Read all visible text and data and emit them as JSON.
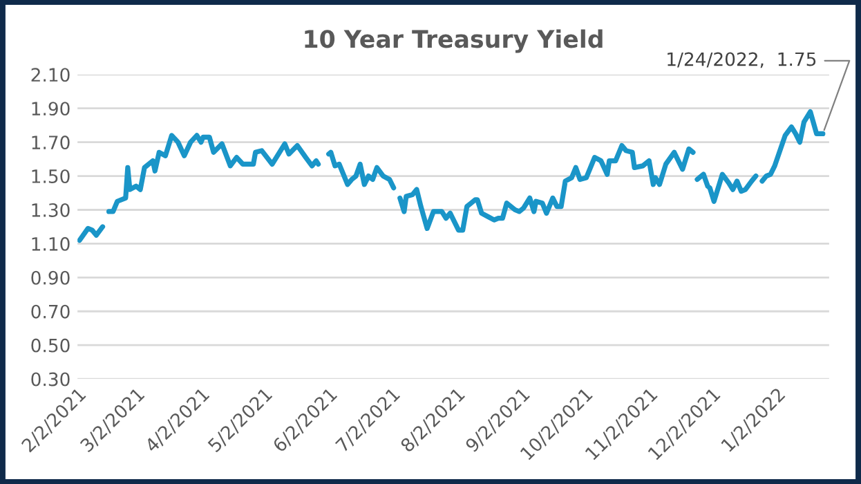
{
  "chart_data": {
    "type": "line",
    "title": "10 Year Treasury Yield",
    "x": [
      "2021-02-03",
      "2021-02-07",
      "2021-02-09",
      "2021-02-11",
      "2021-02-14",
      "2021-02-16",
      "2021-02-17",
      "2021-02-19",
      "2021-02-21",
      "2021-02-25",
      "2021-02-26",
      "2021-02-27",
      "2021-03-02",
      "2021-03-04",
      "2021-03-06",
      "2021-03-10",
      "2021-03-11",
      "2021-03-13",
      "2021-03-16",
      "2021-03-19",
      "2021-03-22",
      "2021-03-25",
      "2021-03-28",
      "2021-03-31",
      "2021-04-02",
      "2021-04-03",
      "2021-04-06",
      "2021-04-08",
      "2021-04-12",
      "2021-04-16",
      "2021-04-19",
      "2021-04-22",
      "2021-04-27",
      "2021-04-28",
      "2021-05-01",
      "2021-05-06",
      "2021-05-12",
      "2021-05-14",
      "2021-05-18",
      "2021-05-22",
      "2021-05-25",
      "2021-05-27",
      "2021-05-28",
      "2021-05-31",
      "2021-06-02",
      "2021-06-03",
      "2021-06-05",
      "2021-06-07",
      "2021-06-11",
      "2021-06-13",
      "2021-06-15",
      "2021-06-17",
      "2021-06-19",
      "2021-06-21",
      "2021-06-23",
      "2021-06-25",
      "2021-06-28",
      "2021-07-01",
      "2021-07-03",
      "2021-07-05",
      "2021-07-06",
      "2021-07-08",
      "2021-07-09",
      "2021-07-12",
      "2021-07-14",
      "2021-07-16",
      "2021-07-19",
      "2021-07-22",
      "2021-07-26",
      "2021-07-28",
      "2021-07-30",
      "2021-08-03",
      "2021-08-05",
      "2021-08-07",
      "2021-08-09",
      "2021-08-11",
      "2021-08-12",
      "2021-08-14",
      "2021-08-17",
      "2021-08-20",
      "2021-08-22",
      "2021-08-24",
      "2021-08-26",
      "2021-08-30",
      "2021-09-01",
      "2021-09-03",
      "2021-09-06",
      "2021-09-08",
      "2021-09-09",
      "2021-09-12",
      "2021-09-14",
      "2021-09-17",
      "2021-09-19",
      "2021-09-21",
      "2021-09-23",
      "2021-09-26",
      "2021-09-28",
      "2021-09-30",
      "2021-10-03",
      "2021-10-05",
      "2021-10-07",
      "2021-10-10",
      "2021-10-13",
      "2021-10-14",
      "2021-10-17",
      "2021-10-20",
      "2021-10-22",
      "2021-10-25",
      "2021-10-26",
      "2021-10-30",
      "2021-11-02",
      "2021-11-04",
      "2021-11-05",
      "2021-11-07",
      "2021-11-10",
      "2021-11-14",
      "2021-11-18",
      "2021-11-21",
      "2021-11-23",
      "2021-11-24",
      "2021-11-25",
      "2021-11-28",
      "2021-11-30",
      "2021-12-01",
      "2021-12-03",
      "2021-12-07",
      "2021-12-10",
      "2021-12-12",
      "2021-12-14",
      "2021-12-16",
      "2021-12-18",
      "2021-12-21",
      "2021-12-23",
      "2021-12-24",
      "2021-12-26",
      "2021-12-28",
      "2021-12-30",
      "2022-01-01",
      "2022-01-06",
      "2022-01-09",
      "2022-01-11",
      "2022-01-13",
      "2022-01-15",
      "2022-01-18",
      "2022-01-21",
      "2022-01-24"
    ],
    "series": [
      {
        "color": "#1a95c8",
        "values": [
          1.12,
          1.19,
          1.18,
          1.15,
          1.2,
          null,
          1.29,
          1.29,
          1.35,
          1.37,
          1.55,
          1.42,
          1.44,
          1.42,
          1.55,
          1.59,
          1.53,
          1.64,
          1.62,
          1.74,
          1.7,
          1.62,
          1.7,
          1.74,
          1.7,
          1.73,
          1.73,
          1.64,
          1.69,
          1.56,
          1.61,
          1.57,
          1.57,
          1.64,
          1.65,
          1.57,
          1.69,
          1.63,
          1.68,
          1.61,
          1.56,
          1.59,
          1.57,
          null,
          1.63,
          1.64,
          1.56,
          1.57,
          1.45,
          1.48,
          1.5,
          1.57,
          1.45,
          1.5,
          1.48,
          1.55,
          1.5,
          1.48,
          1.43,
          null,
          1.37,
          1.29,
          1.38,
          1.39,
          1.42,
          1.32,
          1.19,
          1.29,
          1.29,
          1.25,
          1.28,
          1.18,
          1.18,
          1.32,
          1.34,
          1.36,
          1.36,
          1.28,
          1.26,
          1.24,
          1.25,
          1.25,
          1.34,
          1.3,
          1.29,
          1.31,
          1.37,
          1.29,
          1.35,
          1.34,
          1.28,
          1.37,
          1.32,
          1.32,
          1.47,
          1.49,
          1.55,
          1.48,
          1.49,
          1.55,
          1.61,
          1.59,
          1.51,
          1.59,
          1.59,
          1.68,
          1.65,
          1.64,
          1.55,
          1.56,
          1.59,
          1.45,
          1.49,
          1.45,
          1.57,
          1.64,
          1.54,
          1.66,
          1.64,
          null,
          1.48,
          1.51,
          1.44,
          1.43,
          1.35,
          1.51,
          1.46,
          1.42,
          1.47,
          1.41,
          1.42,
          1.47,
          1.5,
          null,
          1.47,
          1.5,
          1.51,
          1.56,
          1.74,
          1.79,
          1.75,
          1.7,
          1.82,
          1.88,
          1.75,
          1.75
        ]
      }
    ],
    "xlim": [
      "2021-02-02",
      "2022-01-27"
    ],
    "xticks": [
      {
        "value": "2021-02-02",
        "label": "2/2/2021"
      },
      {
        "value": "2021-03-02",
        "label": "3/2/2021"
      },
      {
        "value": "2021-04-02",
        "label": "4/2/2021"
      },
      {
        "value": "2021-05-02",
        "label": "5/2/2021"
      },
      {
        "value": "2021-06-02",
        "label": "6/2/2021"
      },
      {
        "value": "2021-07-02",
        "label": "7/2/2021"
      },
      {
        "value": "2021-08-02",
        "label": "8/2/2021"
      },
      {
        "value": "2021-09-02",
        "label": "9/2/2021"
      },
      {
        "value": "2021-10-02",
        "label": "10/2/2021"
      },
      {
        "value": "2021-11-02",
        "label": "11/2/2021"
      },
      {
        "value": "2021-12-02",
        "label": "12/2/2021"
      },
      {
        "value": "2022-01-02",
        "label": "1/2/2022"
      }
    ],
    "ylim": [
      0.3,
      2.1
    ],
    "yticks": [
      {
        "value": 0.3,
        "label": "0.30"
      },
      {
        "value": 0.5,
        "label": "0.50"
      },
      {
        "value": 0.7,
        "label": "0.70"
      },
      {
        "value": 0.9,
        "label": "0.90"
      },
      {
        "value": 1.1,
        "label": "1.10"
      },
      {
        "value": 1.3,
        "label": "1.30"
      },
      {
        "value": 1.5,
        "label": "1.50"
      },
      {
        "value": 1.7,
        "label": "1.70"
      },
      {
        "value": 1.9,
        "label": "1.90"
      },
      {
        "value": 2.1,
        "label": "2.10"
      }
    ],
    "grid": "y",
    "marker": "none",
    "line_style": "solid",
    "annotations": [
      {
        "text": "1/24/2022,  1.75",
        "x": "2022-01-24",
        "y": 1.75
      }
    ]
  }
}
